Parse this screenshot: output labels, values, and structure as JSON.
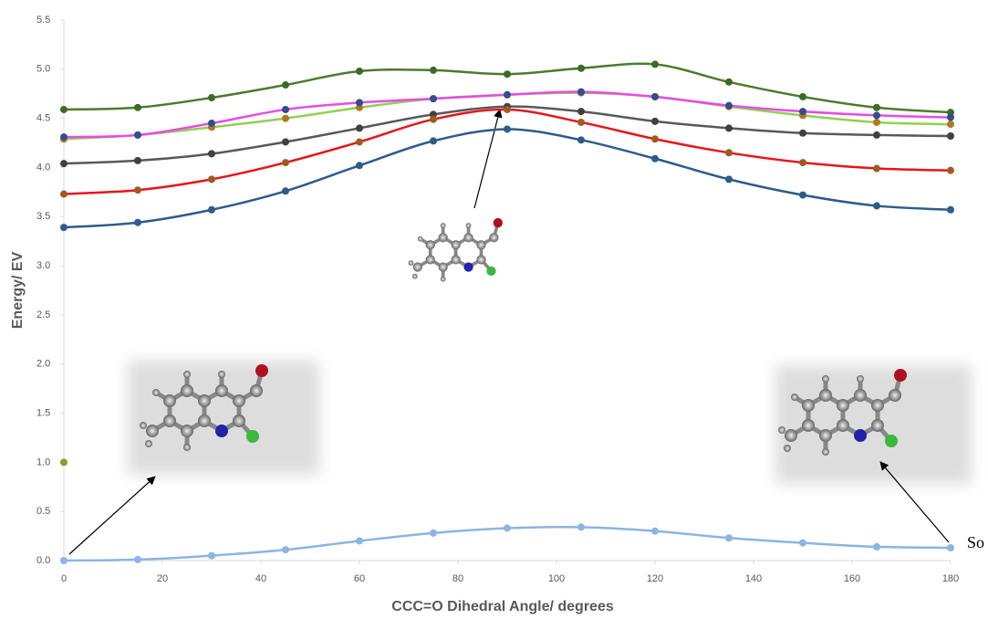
{
  "chart_data": {
    "type": "line",
    "x_label": "CCC=O Dihedral Angle/ degrees",
    "y_label": "Energy/ EV",
    "annotation": "So",
    "x": [
      0,
      15,
      30,
      45,
      60,
      75,
      90,
      105,
      120,
      135,
      150,
      165,
      180
    ],
    "series": [
      {
        "color": "#4e7a2e",
        "marker": "#3f6a26",
        "values": [
          4.59,
          4.61,
          4.71,
          4.84,
          4.98,
          4.99,
          4.95,
          5.01,
          5.05,
          4.87,
          4.72,
          4.61,
          4.56
        ]
      },
      {
        "color": "#92d050",
        "marker": "#b07820",
        "values": [
          4.29,
          4.33,
          4.41,
          4.5,
          4.61,
          4.7,
          4.74,
          4.76,
          4.72,
          4.62,
          4.53,
          4.46,
          4.44
        ]
      },
      {
        "color": "#e64ce6",
        "marker": "#2f4f8f",
        "values": [
          4.31,
          4.33,
          4.45,
          4.59,
          4.66,
          4.7,
          4.74,
          4.77,
          4.72,
          4.63,
          4.57,
          4.53,
          4.51
        ]
      },
      {
        "color": "#595959",
        "marker": "#404040",
        "values": [
          4.04,
          4.07,
          4.14,
          4.26,
          4.4,
          4.54,
          4.62,
          4.57,
          4.47,
          4.4,
          4.35,
          4.33,
          4.32
        ]
      },
      {
        "color": "#e8141a",
        "marker": "#a05a20",
        "values": [
          3.73,
          3.77,
          3.88,
          4.05,
          4.26,
          4.49,
          4.59,
          4.46,
          4.29,
          4.15,
          4.05,
          3.99,
          3.97
        ]
      },
      {
        "color": "#2e5c8a",
        "marker": "#2e5c8a",
        "values": [
          3.39,
          3.44,
          3.57,
          3.76,
          4.02,
          4.27,
          4.39,
          4.28,
          4.09,
          3.88,
          3.72,
          3.61,
          3.57
        ]
      },
      {
        "color": "#8db4e2",
        "marker": "#8db4e2",
        "values": [
          0.0,
          0.01,
          0.05,
          0.11,
          0.2,
          0.28,
          0.33,
          0.34,
          0.3,
          0.23,
          0.18,
          0.14,
          0.13
        ]
      },
      {
        "color": "#8a9a3a",
        "marker": "#8a9a3a",
        "values": [
          1.0,
          null,
          null,
          null,
          null,
          null,
          null,
          null,
          null,
          null,
          null,
          null,
          null
        ]
      }
    ],
    "xlim": [
      0,
      180
    ],
    "xticks": [
      0,
      20,
      40,
      60,
      80,
      100,
      120,
      140,
      160,
      180
    ],
    "ylim": [
      0,
      5.5
    ],
    "yticks": [
      {
        "value": 0,
        "label": "0.0"
      },
      0.5,
      {
        "value": 1,
        "label": "1.0"
      },
      1.5,
      {
        "value": 2,
        "label": "2.0"
      },
      2.5,
      {
        "value": 3,
        "label": "3.0"
      },
      3.5,
      {
        "value": 4,
        "label": "4.0"
      },
      4.5,
      {
        "value": 5,
        "label": "5.0"
      },
      5.5
    ]
  }
}
